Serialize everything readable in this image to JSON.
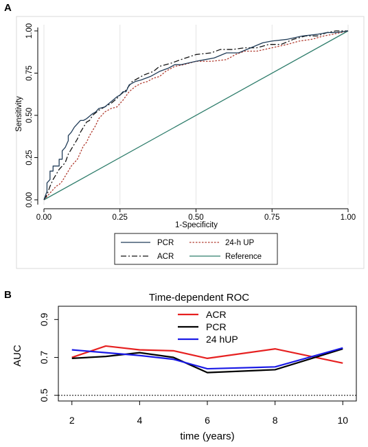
{
  "panels": {
    "a_label": "A",
    "b_label": "B"
  },
  "chart_data": [
    {
      "id": "roc",
      "type": "line",
      "title": "",
      "xlabel": "1-Specificity",
      "ylabel": "Sensitivity",
      "xlim": [
        0,
        1
      ],
      "ylim": [
        0,
        1
      ],
      "x_ticks": [
        0.0,
        0.25,
        0.5,
        0.75,
        1.0
      ],
      "y_ticks": [
        0.0,
        0.25,
        0.5,
        0.75,
        1.0
      ],
      "x_tick_labels": [
        "0.00",
        "0.25",
        "0.50",
        "0.75",
        "1.00"
      ],
      "y_tick_labels": [
        "0.00",
        "0.25",
        "0.50",
        "0.75",
        "1.00"
      ],
      "grid": "vertical",
      "legend_position": "bottom",
      "series": [
        {
          "name": "PCR",
          "color": "#1f3b57",
          "dash": "solid",
          "x": [
            0.0,
            0.01,
            0.01,
            0.02,
            0.02,
            0.03,
            0.03,
            0.05,
            0.05,
            0.06,
            0.06,
            0.07,
            0.08,
            0.08,
            0.09,
            0.1,
            0.11,
            0.12,
            0.13,
            0.14,
            0.16,
            0.17,
            0.18,
            0.2,
            0.22,
            0.24,
            0.25,
            0.26,
            0.27,
            0.28,
            0.3,
            0.32,
            0.35,
            0.38,
            0.41,
            0.43,
            0.45,
            0.5,
            0.53,
            0.56,
            0.6,
            0.64,
            0.68,
            0.72,
            0.75,
            0.8,
            0.85,
            0.9,
            0.93,
            0.96,
            1.0
          ],
          "y": [
            0.0,
            0.05,
            0.1,
            0.12,
            0.17,
            0.17,
            0.2,
            0.2,
            0.24,
            0.24,
            0.29,
            0.31,
            0.35,
            0.38,
            0.4,
            0.43,
            0.45,
            0.47,
            0.47,
            0.48,
            0.51,
            0.52,
            0.54,
            0.55,
            0.58,
            0.61,
            0.62,
            0.64,
            0.64,
            0.68,
            0.7,
            0.71,
            0.73,
            0.76,
            0.78,
            0.8,
            0.8,
            0.82,
            0.83,
            0.84,
            0.87,
            0.87,
            0.9,
            0.93,
            0.94,
            0.95,
            0.97,
            0.98,
            0.99,
            0.99,
            1.0
          ]
        },
        {
          "name": "ACR",
          "color": "#111111",
          "dash": "dashdot",
          "x": [
            0.0,
            0.01,
            0.02,
            0.03,
            0.04,
            0.05,
            0.06,
            0.07,
            0.08,
            0.09,
            0.1,
            0.11,
            0.12,
            0.13,
            0.14,
            0.15,
            0.16,
            0.18,
            0.2,
            0.22,
            0.24,
            0.25,
            0.27,
            0.29,
            0.31,
            0.33,
            0.36,
            0.38,
            0.4,
            0.42,
            0.45,
            0.5,
            0.55,
            0.58,
            0.62,
            0.66,
            0.7,
            0.74,
            0.78,
            0.82,
            0.86,
            0.9,
            0.93,
            0.96,
            1.0
          ],
          "y": [
            0.0,
            0.03,
            0.08,
            0.12,
            0.15,
            0.18,
            0.2,
            0.22,
            0.27,
            0.3,
            0.33,
            0.36,
            0.4,
            0.43,
            0.46,
            0.47,
            0.5,
            0.53,
            0.55,
            0.57,
            0.6,
            0.62,
            0.65,
            0.7,
            0.72,
            0.74,
            0.76,
            0.79,
            0.8,
            0.81,
            0.83,
            0.86,
            0.87,
            0.89,
            0.89,
            0.9,
            0.9,
            0.92,
            0.92,
            0.95,
            0.97,
            0.97,
            0.99,
            1.0,
            1.0
          ]
        },
        {
          "name": "24-h UP",
          "color": "#b03a2e",
          "dash": "dotted",
          "x": [
            0.0,
            0.01,
            0.02,
            0.03,
            0.04,
            0.05,
            0.06,
            0.07,
            0.08,
            0.09,
            0.1,
            0.11,
            0.12,
            0.13,
            0.14,
            0.15,
            0.16,
            0.17,
            0.18,
            0.2,
            0.22,
            0.24,
            0.26,
            0.28,
            0.3,
            0.32,
            0.34,
            0.36,
            0.38,
            0.4,
            0.43,
            0.46,
            0.5,
            0.55,
            0.6,
            0.63,
            0.66,
            0.7,
            0.75,
            0.8,
            0.84,
            0.88,
            0.92,
            0.95,
            1.0
          ],
          "y": [
            0.0,
            0.02,
            0.04,
            0.06,
            0.08,
            0.09,
            0.11,
            0.14,
            0.17,
            0.2,
            0.22,
            0.24,
            0.28,
            0.32,
            0.34,
            0.38,
            0.41,
            0.44,
            0.48,
            0.52,
            0.54,
            0.55,
            0.59,
            0.64,
            0.67,
            0.69,
            0.7,
            0.72,
            0.73,
            0.76,
            0.79,
            0.8,
            0.82,
            0.82,
            0.83,
            0.86,
            0.88,
            0.88,
            0.9,
            0.92,
            0.94,
            0.95,
            0.97,
            0.98,
            1.0
          ]
        },
        {
          "name": "Reference",
          "color": "#2e7d6b",
          "dash": "solid",
          "x": [
            0,
            1
          ],
          "y": [
            0,
            1
          ]
        }
      ]
    },
    {
      "id": "td",
      "type": "line",
      "title": "Time-dependent ROC",
      "xlabel": "time (years)",
      "ylabel": "AUC",
      "xlim": [
        1.6,
        10.4
      ],
      "ylim": [
        0.47,
        0.97
      ],
      "x_ticks": [
        2,
        4,
        6,
        8,
        10
      ],
      "y_ticks": [
        0.5,
        0.7,
        0.9
      ],
      "x_tick_labels": [
        "2",
        "4",
        "6",
        "8",
        "10"
      ],
      "y_tick_labels": [
        "0.5",
        "0.7",
        "0.9"
      ],
      "legend_position": "top",
      "reference_line": {
        "y": 0.5,
        "style": "dotted"
      },
      "series": [
        {
          "name": "ACR",
          "color": "#e62020",
          "x": [
            2,
            3,
            4,
            5,
            6,
            8,
            10
          ],
          "y": [
            0.7,
            0.76,
            0.74,
            0.735,
            0.695,
            0.745,
            0.67
          ]
        },
        {
          "name": "PCR",
          "color": "#000000",
          "x": [
            2,
            3,
            4,
            5,
            6,
            8,
            10
          ],
          "y": [
            0.695,
            0.705,
            0.725,
            0.7,
            0.62,
            0.635,
            0.745
          ]
        },
        {
          "name": "24 hUP",
          "color": "#1a1ae6",
          "x": [
            2,
            3,
            4,
            5,
            6,
            8,
            10
          ],
          "y": [
            0.74,
            0.725,
            0.71,
            0.69,
            0.64,
            0.65,
            0.75
          ]
        }
      ]
    }
  ]
}
